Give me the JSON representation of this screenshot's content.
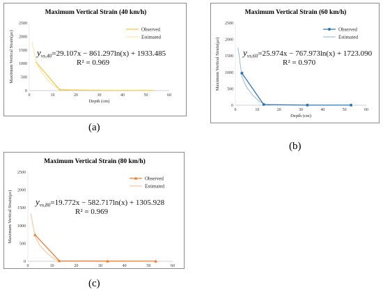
{
  "chart_data": [
    {
      "type": "line",
      "title": "Maximum Vertical Strain (40 km/h)",
      "xlabel": "Depth (cm)",
      "ylabel": "Maximum Vertical Strain(με)",
      "xlim": [
        0,
        60
      ],
      "ylim": [
        0,
        2500
      ],
      "xticks": [
        "0",
        "10",
        "20",
        "30",
        "40",
        "50",
        "60"
      ],
      "yticks": [
        "0",
        "500",
        "1000",
        "1500",
        "2000",
        "2500"
      ],
      "legend": [
        "Observed",
        "Estimated"
      ],
      "legend_position": "top-right",
      "color": "#f2c744",
      "observed": {
        "x": [
          3,
          13,
          33,
          53
        ],
        "y": [
          1045,
          30,
          3,
          2
        ]
      },
      "estimated": {
        "x": [
          1.2,
          3,
          5,
          8,
          11,
          14,
          16.5
        ],
        "y": [
          1800,
          1070,
          710,
          380,
          150,
          30,
          0
        ]
      },
      "equation_var": "y",
      "equation_sub": "vs,40",
      "equation_rhs": "=29.107x − 861.297ln(x) + 1933.485",
      "r2": "R² = 0.969",
      "caption": "(a)"
    },
    {
      "type": "line",
      "title": "Maximum Vertical Strain (60 km/h)",
      "xlabel": "Depth (cm)",
      "ylabel": "Maximum Vertical Strain(με)",
      "xlim": [
        0,
        60
      ],
      "ylim": [
        0,
        2500
      ],
      "xticks": [
        "0",
        "10",
        "20",
        "30",
        "40",
        "50",
        "60"
      ],
      "yticks": [
        "0",
        "500",
        "1000",
        "1500",
        "2000",
        "2500"
      ],
      "legend": [
        "Observed",
        "Estimated"
      ],
      "legend_position": "top-right",
      "color": "#2e75b6",
      "observed": {
        "x": [
          3,
          13,
          33,
          53
        ],
        "y": [
          975,
          20,
          3,
          2
        ]
      },
      "estimated": {
        "x": [
          1.2,
          3,
          5,
          8,
          11,
          14,
          16
        ],
        "y": [
          1750,
          880,
          560,
          300,
          110,
          15,
          0
        ]
      },
      "equation_var": "y",
      "equation_sub": "vs,60",
      "equation_rhs": "=25.974x − 767.973ln(x) + 1723.090",
      "r2": "R² = 0.970",
      "caption": "(b)"
    },
    {
      "type": "line",
      "title": "Maximum Vertical Strain (80 km/h)",
      "xlabel": "Depth (cm)",
      "ylabel": "Maximum Vertical Strain(με)",
      "xlim": [
        0,
        60
      ],
      "ylim": [
        0,
        2500
      ],
      "xticks": [
        "0",
        "10",
        "20",
        "30",
        "40",
        "50",
        "60"
      ],
      "yticks": [
        "0",
        "500",
        "1000",
        "1500",
        "2000",
        "2500"
      ],
      "legend": [
        "Observed",
        "Estimated"
      ],
      "legend_position": "top-right",
      "color": "#ed7d31",
      "observed": {
        "x": [
          3,
          13,
          33,
          53
        ],
        "y": [
          740,
          10,
          3,
          2
        ]
      },
      "estimated": {
        "x": [
          1.2,
          3,
          5,
          8,
          11,
          13.5
        ],
        "y": [
          1340,
          700,
          440,
          220,
          60,
          0
        ]
      },
      "equation_var": "y",
      "equation_sub": "vs,80",
      "equation_rhs": "=19.772x − 582.717ln(x) + 1305.928",
      "r2": "R² = 0.969",
      "caption": "(c)"
    }
  ]
}
